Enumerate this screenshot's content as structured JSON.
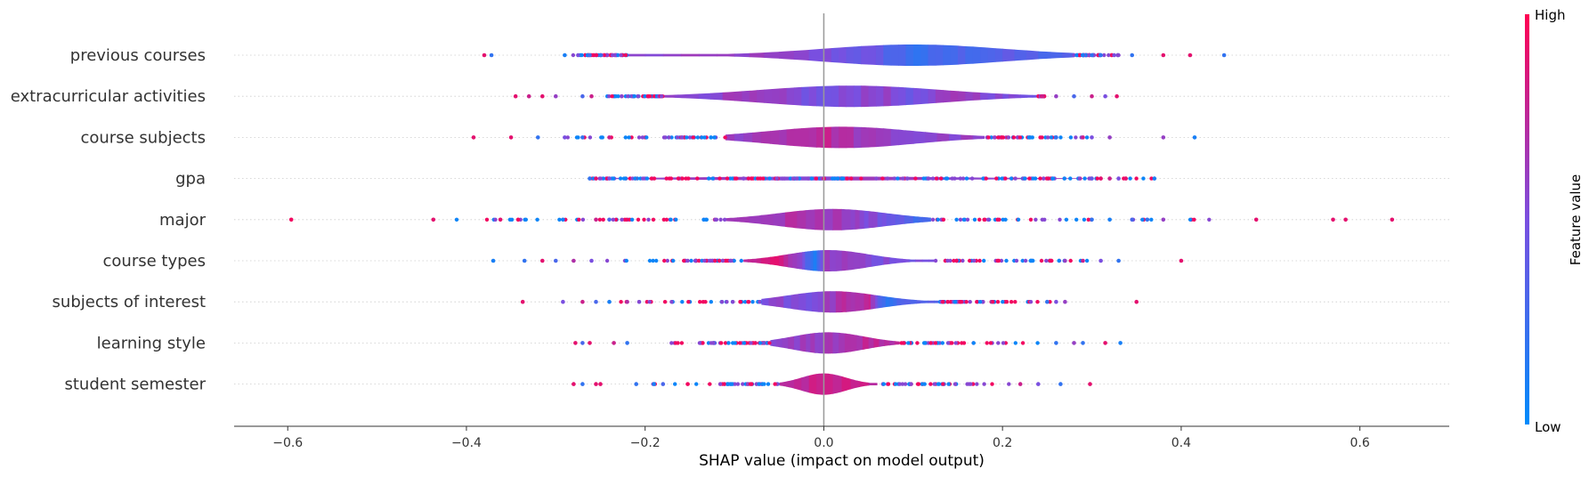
{
  "chart_data": {
    "type": "violin",
    "title": "",
    "xlabel": "SHAP value (impact on model output)",
    "xlim": [
      -0.66,
      0.7
    ],
    "xticks": [
      -0.6,
      -0.4,
      -0.2,
      0.0,
      0.2,
      0.4,
      0.6
    ],
    "xtick_labels": [
      "−0.6",
      "−0.4",
      "−0.2",
      "0.0",
      "0.2",
      "0.4",
      "0.6"
    ],
    "zero_line": 0.0,
    "colorbar": {
      "label": "Feature value",
      "high_label": "High",
      "low_label": "Low",
      "high_color": "#ff0052",
      "low_color": "#008bfb"
    },
    "features": [
      {
        "name": "previous courses",
        "range": [
          -0.38,
          0.45
        ],
        "violin": {
          "x0": -0.22,
          "x1": 0.28,
          "peak": 0.1,
          "sigma": 0.1
        },
        "color_segments": [
          [
            -0.22,
            0.55
          ],
          [
            -0.1,
            0.6
          ],
          [
            0.0,
            0.5
          ],
          [
            0.05,
            0.42
          ],
          [
            0.1,
            0.22
          ],
          [
            0.15,
            0.3
          ],
          [
            0.2,
            0.35
          ],
          [
            0.28,
            0.3
          ]
        ],
        "outliers": [
          [
            -0.38,
            0.9
          ],
          [
            -0.372,
            0.2
          ],
          [
            -0.29,
            0.1
          ],
          [
            -0.275,
            0.5
          ],
          [
            -0.262,
            0.3
          ],
          [
            -0.25,
            0.2
          ],
          [
            0.29,
            0.1
          ],
          [
            0.3,
            0.2
          ],
          [
            0.31,
            0.2
          ],
          [
            0.325,
            0.5
          ],
          [
            0.345,
            0.2
          ],
          [
            0.38,
            0.9
          ],
          [
            0.41,
            0.9
          ],
          [
            0.448,
            0.2
          ]
        ]
      },
      {
        "name": "extracurricular activities",
        "range": [
          -0.35,
          0.33
        ],
        "violin": {
          "x0": -0.18,
          "x1": 0.24,
          "peak": 0.03,
          "sigma": 0.1
        },
        "color_segments": [
          [
            -0.18,
            0.55
          ],
          [
            -0.1,
            0.6
          ],
          [
            -0.05,
            0.55
          ],
          [
            0.0,
            0.45
          ],
          [
            0.05,
            0.6
          ],
          [
            0.1,
            0.45
          ],
          [
            0.15,
            0.65
          ],
          [
            0.2,
            0.5
          ],
          [
            0.24,
            0.5
          ]
        ],
        "outliers": [
          [
            -0.345,
            0.9
          ],
          [
            -0.33,
            0.8
          ],
          [
            -0.315,
            0.9
          ],
          [
            -0.3,
            0.6
          ],
          [
            -0.27,
            0.3
          ],
          [
            -0.26,
            0.8
          ],
          [
            0.245,
            0.8
          ],
          [
            0.26,
            0.6
          ],
          [
            0.28,
            0.3
          ],
          [
            0.3,
            0.8
          ],
          [
            0.315,
            0.5
          ],
          [
            0.328,
            0.9
          ]
        ]
      },
      {
        "name": "course subjects",
        "range": [
          -0.39,
          0.41
        ],
        "violin": {
          "x0": -0.11,
          "x1": 0.18,
          "peak": 0.02,
          "sigma": 0.08
        },
        "color_segments": [
          [
            -0.11,
            0.6
          ],
          [
            -0.05,
            0.7
          ],
          [
            0.0,
            0.75
          ],
          [
            0.05,
            0.6
          ],
          [
            0.1,
            0.55
          ],
          [
            0.18,
            0.6
          ]
        ],
        "outliers": [
          [
            -0.392,
            0.9
          ],
          [
            -0.35,
            0.9
          ],
          [
            -0.32,
            0.2
          ],
          [
            -0.29,
            0.5
          ],
          [
            -0.27,
            0.2
          ],
          [
            -0.24,
            0.8
          ],
          [
            0.26,
            0.2
          ],
          [
            0.29,
            0.8
          ],
          [
            0.3,
            0.5
          ],
          [
            0.32,
            0.6
          ],
          [
            0.38,
            0.6
          ],
          [
            0.415,
            0.1
          ]
        ]
      },
      {
        "name": "gpa",
        "range": [
          -0.26,
          0.37
        ],
        "violin": {
          "x0": -0.26,
          "x1": 0.3,
          "peak": 0.0,
          "sigma": 0.15,
          "thin": true
        },
        "color_segments": [
          [
            -0.26,
            0.6
          ],
          [
            0.3,
            0.6
          ]
        ],
        "outliers": [
          [
            -0.262,
            0.2
          ],
          [
            -0.255,
            0.9
          ],
          [
            -0.24,
            0.5
          ],
          [
            0.3,
            0.4
          ],
          [
            0.31,
            0.9
          ],
          [
            0.32,
            0.8
          ],
          [
            0.33,
            0.5
          ],
          [
            0.338,
            0.9
          ],
          [
            0.37,
            0.1
          ]
        ]
      },
      {
        "name": "major",
        "range": [
          -0.6,
          0.64
        ],
        "violin": {
          "x0": -0.11,
          "x1": 0.12,
          "peak": 0.01,
          "sigma": 0.06
        },
        "color_segments": [
          [
            -0.11,
            0.6
          ],
          [
            -0.03,
            0.7
          ],
          [
            0.03,
            0.6
          ],
          [
            0.06,
            0.5
          ],
          [
            0.09,
            0.35
          ],
          [
            0.12,
            0.2
          ]
        ],
        "outliers": [
          [
            -0.596,
            0.95
          ],
          [
            -0.437,
            0.9
          ],
          [
            -0.362,
            0.9
          ],
          [
            -0.292,
            0.1
          ],
          [
            -0.255,
            0.8
          ],
          [
            -0.24,
            0.3
          ],
          [
            0.3,
            0.2
          ],
          [
            0.32,
            0.1
          ],
          [
            0.345,
            0.3
          ],
          [
            0.362,
            0.2
          ],
          [
            0.38,
            0.6
          ],
          [
            0.484,
            0.9
          ],
          [
            0.57,
            0.9
          ],
          [
            0.584,
            0.9
          ],
          [
            0.636,
            0.9
          ]
        ]
      },
      {
        "name": "course types",
        "range": [
          -0.37,
          0.4
        ],
        "violin": {
          "x0": -0.09,
          "x1": 0.125,
          "peak": 0.005,
          "sigma": 0.045
        },
        "color_segments": [
          [
            -0.09,
            0.7
          ],
          [
            -0.06,
            0.9
          ],
          [
            -0.03,
            0.6
          ],
          [
            -0.012,
            0.08
          ],
          [
            0.0,
            0.6
          ],
          [
            0.04,
            0.55
          ],
          [
            0.08,
            0.5
          ],
          [
            0.125,
            0.5
          ]
        ],
        "outliers": [
          [
            -0.37,
            0.1
          ],
          [
            -0.335,
            0.2
          ],
          [
            -0.315,
            0.9
          ],
          [
            -0.3,
            0.3
          ],
          [
            -0.28,
            0.7
          ],
          [
            -0.26,
            0.5
          ],
          [
            0.27,
            0.6
          ],
          [
            0.29,
            0.8
          ],
          [
            0.31,
            0.5
          ],
          [
            0.33,
            0.2
          ],
          [
            0.4,
            0.9
          ]
        ]
      },
      {
        "name": "subjects of interest",
        "range": [
          -0.34,
          0.35
        ],
        "violin": {
          "x0": -0.07,
          "x1": 0.13,
          "peak": 0.01,
          "sigma": 0.05
        },
        "color_segments": [
          [
            -0.07,
            0.55
          ],
          [
            -0.02,
            0.5
          ],
          [
            0.02,
            0.7
          ],
          [
            0.05,
            0.75
          ],
          [
            0.065,
            0.2
          ],
          [
            0.09,
            0.3
          ],
          [
            0.13,
            0.4
          ]
        ],
        "outliers": [
          [
            -0.337,
            0.9
          ],
          [
            -0.292,
            0.5
          ],
          [
            -0.27,
            0.8
          ],
          [
            -0.255,
            0.3
          ],
          [
            -0.24,
            0.1
          ],
          [
            -0.22,
            0.7
          ],
          [
            0.25,
            0.2
          ],
          [
            0.26,
            0.5
          ],
          [
            0.27,
            0.6
          ],
          [
            0.35,
            0.9
          ]
        ]
      },
      {
        "name": "learning style",
        "range": [
          -0.28,
          0.33
        ],
        "violin": {
          "x0": -0.06,
          "x1": 0.085,
          "peak": 0.005,
          "sigma": 0.04
        },
        "color_segments": [
          [
            -0.06,
            0.55
          ],
          [
            -0.02,
            0.6
          ],
          [
            0.01,
            0.65
          ],
          [
            0.05,
            0.75
          ],
          [
            0.085,
            0.7
          ]
        ],
        "outliers": [
          [
            -0.278,
            0.9
          ],
          [
            -0.27,
            0.3
          ],
          [
            -0.262,
            0.9
          ],
          [
            -0.235,
            0.8
          ],
          [
            -0.22,
            0.2
          ],
          [
            0.26,
            0.2
          ],
          [
            0.28,
            0.6
          ],
          [
            0.29,
            0.2
          ],
          [
            0.315,
            0.9
          ],
          [
            0.332,
            0.1
          ]
        ]
      },
      {
        "name": "student semester",
        "range": [
          -0.28,
          0.3
        ],
        "violin": {
          "x0": -0.05,
          "x1": 0.06,
          "peak": 0.0,
          "sigma": 0.025
        },
        "color_segments": [
          [
            -0.05,
            0.7
          ],
          [
            0.0,
            0.8
          ],
          [
            0.06,
            0.75
          ]
        ],
        "outliers": [
          [
            -0.28,
            0.9
          ],
          [
            -0.27,
            0.2
          ],
          [
            -0.255,
            0.9
          ],
          [
            -0.25,
            0.9
          ],
          [
            -0.21,
            0.2
          ],
          [
            -0.19,
            0.1
          ],
          [
            -0.18,
            0.3
          ],
          [
            0.22,
            0.8
          ],
          [
            0.24,
            0.5
          ],
          [
            0.265,
            0.2
          ],
          [
            0.298,
            0.9
          ]
        ]
      }
    ]
  }
}
